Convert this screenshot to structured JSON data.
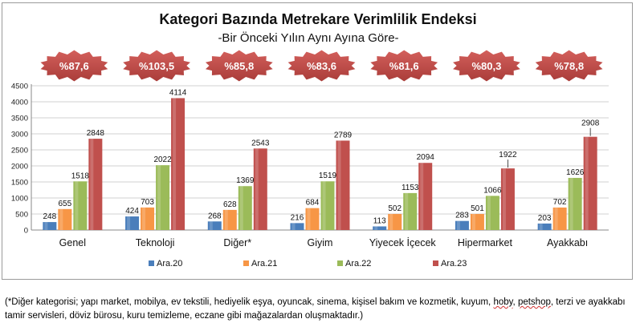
{
  "chart_data": {
    "type": "bar",
    "title": "Kategori Bazında Metrekare Verimlilik Endeksi",
    "subtitle": "-Bir Önceki Yılın Aynı Ayına Göre-",
    "categories": [
      "Genel",
      "Teknoloji",
      "Diğer*",
      "Giyim",
      "Yiyecek İçecek",
      "Hipermarket",
      "Ayakkabı"
    ],
    "series": [
      {
        "name": "Ara.20",
        "color": "#4a7ebb",
        "values": [
          248,
          424,
          268,
          216,
          113,
          283,
          203
        ]
      },
      {
        "name": "Ara.21",
        "color": "#f79646",
        "values": [
          655,
          703,
          628,
          684,
          502,
          501,
          702
        ]
      },
      {
        "name": "Ara.22",
        "color": "#9bbb59",
        "values": [
          1518,
          2022,
          1369,
          1519,
          1153,
          1066,
          1626
        ]
      },
      {
        "name": "Ara.23",
        "color": "#c0504d",
        "values": [
          2848,
          4114,
          2543,
          2789,
          2094,
          1922,
          2908
        ]
      }
    ],
    "badges": [
      "%87,6",
      "%103,5",
      "%85,8",
      "%83,6",
      "%81,6",
      "%80,3",
      "%78,8"
    ],
    "badge_color": "#c0504d",
    "yticks": [
      "0",
      "500",
      "1000",
      "1500",
      "2000",
      "2500",
      "3000",
      "3500",
      "4000",
      "4500"
    ],
    "ylim": [
      0,
      4500
    ],
    "xlabel": "",
    "ylabel": "",
    "grid": true,
    "legend_position": "bottom"
  },
  "footnote": {
    "part1": "(*Diğer kategorisi; yapı market, mobilya, ev tekstili, hediyelik eşya, oyuncak, sinema, kişisel bakım ve kozmetik, kuyum, ",
    "hoby": "hoby",
    "sep": ", ",
    "petshop": "petshop",
    "part2": ", terzi ve ayakkabı tamir servisleri, döviz bürosu, kuru temizleme, eczane gibi mağazalardan oluşmaktadır.)"
  }
}
